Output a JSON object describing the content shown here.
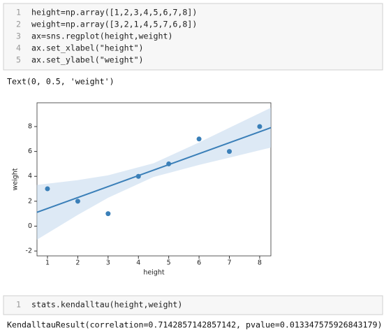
{
  "cells": [
    {
      "code": [
        "height=np.array([1,2,3,4,5,6,7,8])",
        "weight=np.array([3,2,1,4,5,7,6,8])",
        "ax=sns.regplot(height,weight)",
        "ax.set_xlabel(\"height\")",
        "ax.set_ylabel(\"weight\")"
      ],
      "line_numbers": [
        "1",
        "2",
        "3",
        "4",
        "5"
      ],
      "output": "Text(0, 0.5, 'weight')"
    },
    {
      "code": [
        "stats.kendalltau(height,weight)"
      ],
      "line_numbers": [
        "1"
      ],
      "output": "KendalltauResult(correlation=0.7142857142857142, pvalue=0.013347575926843179)"
    }
  ],
  "chart_data": {
    "type": "regplot",
    "x_label": "height",
    "y_label": "weight",
    "x": [
      1,
      2,
      3,
      4,
      5,
      6,
      7,
      8
    ],
    "values": [
      3,
      2,
      1,
      4,
      5,
      7,
      6,
      8
    ],
    "color": "#3a7fb8",
    "fit_line": {
      "x": [
        0.65,
        8.37
      ],
      "y": [
        1.11,
        7.91
      ]
    },
    "ci": {
      "x": [
        0.65,
        2,
        3,
        4.5,
        6,
        7,
        8.37
      ],
      "upper": [
        3.31,
        3.7,
        4.08,
        5.05,
        6.72,
        7.9,
        9.51
      ],
      "lower": [
        -1.09,
        0.9,
        2.28,
        3.95,
        4.92,
        5.5,
        6.31
      ],
      "color": "#c6dbee"
    },
    "xlim": [
      0.655,
      8.37
    ],
    "ylim": [
      -2.39,
      9.91
    ],
    "xticks": [
      1,
      2,
      3,
      4,
      5,
      6,
      7,
      8
    ],
    "yticks": [
      -2,
      0,
      2,
      4,
      6,
      8
    ]
  }
}
